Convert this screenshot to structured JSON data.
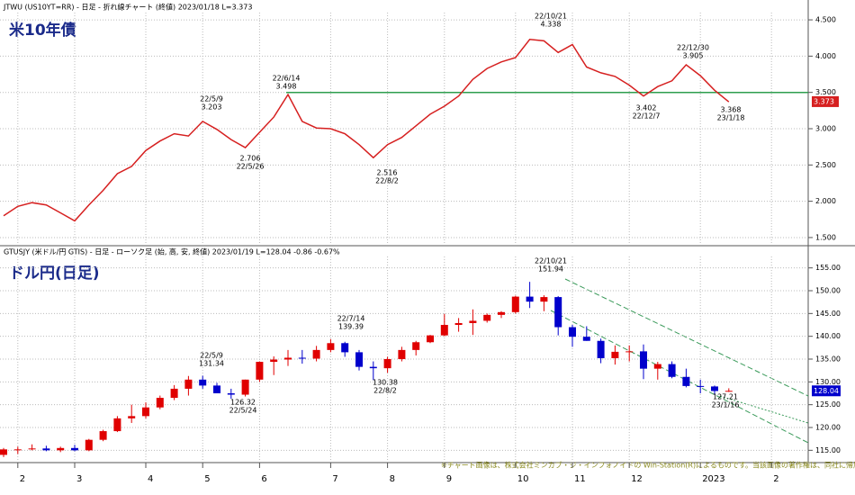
{
  "chart_data": [
    {
      "type": "line",
      "title": "米10年債",
      "header": "JTWU (US10YT=RR) - 日足 - 折れ線チャート (終値)  2023/01/18 L=3.373",
      "color": "#d62020",
      "values": [
        1.8,
        1.93,
        1.98,
        1.95,
        1.84,
        1.73,
        1.95,
        2.15,
        2.38,
        2.48,
        2.7,
        2.83,
        2.93,
        2.9,
        3.1,
        2.99,
        2.85,
        2.74,
        2.95,
        3.16,
        3.47,
        3.1,
        3.01,
        3.0,
        2.93,
        2.78,
        2.6,
        2.78,
        2.88,
        3.04,
        3.2,
        3.31,
        3.45,
        3.68,
        3.83,
        3.92,
        3.98,
        4.23,
        4.21,
        4.05,
        4.16,
        3.85,
        3.77,
        3.72,
        3.6,
        3.45,
        3.58,
        3.66,
        3.88,
        3.73,
        3.53,
        3.37,
        null,
        null,
        null
      ],
      "ylim": [
        1.4,
        4.6
      ],
      "yticks": [
        {
          "value": 1.5,
          "label": "1.500"
        },
        {
          "value": 2.0,
          "label": "2.000"
        },
        {
          "value": 2.5,
          "label": "2.500"
        },
        {
          "value": 3.0,
          "label": "3.000"
        },
        {
          "value": 3.5,
          "label": "3.500"
        },
        {
          "value": 4.0,
          "label": "4.000"
        },
        {
          "value": 4.5,
          "label": "4.500"
        }
      ],
      "hline": 3.5,
      "hline_color": "#2e9e4e",
      "last": 3.373,
      "annotations": [
        {
          "date": "22/5/9",
          "label": "3.203"
        },
        {
          "date": "22/6/14",
          "label": "3.498"
        },
        {
          "date": "22/5/26",
          "label": "2.706"
        },
        {
          "date": "22/8/2",
          "label": "2.516"
        },
        {
          "date": "22/10/21",
          "label": "4.338"
        },
        {
          "date": "22/12/7",
          "label": "3.402"
        },
        {
          "date": "22/12/30",
          "label": "3.905"
        },
        {
          "date": "23/1/18",
          "label": "3.368"
        }
      ]
    },
    {
      "type": "candlestick",
      "title": "ドル円(日足)",
      "header": "GTUSJY (米ドル/円 GTIS) - 日足 - ローソク足 (始, 高, 安, 終値)  2023/01/19 L=128.04 -0.86 -0.67%",
      "up_color": "#e00000",
      "down_color": "#0000cc",
      "categories": [
        null,
        "2",
        null,
        null,
        null,
        "3",
        null,
        null,
        null,
        null,
        "4",
        null,
        null,
        null,
        "5",
        null,
        null,
        null,
        "6",
        null,
        null,
        null,
        null,
        "7",
        null,
        null,
        null,
        "8",
        null,
        null,
        null,
        "9",
        null,
        null,
        null,
        null,
        "10",
        null,
        null,
        null,
        "11",
        null,
        null,
        null,
        "12",
        null,
        null,
        null,
        null,
        "2023",
        null,
        null,
        null,
        null,
        "2"
      ],
      "open": [
        114.0,
        115.2,
        115.2,
        115.4,
        115.0,
        115.5,
        115.0,
        117.3,
        119.2,
        122.0,
        122.5,
        124.4,
        126.5,
        128.5,
        130.5,
        129.2,
        127.5,
        127.2,
        130.5,
        134.4,
        134.9,
        135.3,
        135.1,
        137.0,
        138.5,
        136.5,
        133.3,
        133.0,
        135.0,
        137.0,
        138.7,
        140.2,
        142.5,
        142.9,
        143.4,
        144.7,
        145.3,
        148.7,
        147.6,
        148.6,
        142.0,
        139.9,
        139.0,
        135.2,
        136.6,
        136.7,
        132.9,
        133.9,
        131.1,
        129.1,
        129.0,
        128.0,
        null,
        null,
        null
      ],
      "high": [
        115.5,
        115.8,
        116.3,
        116.0,
        115.8,
        116.2,
        117.5,
        119.5,
        122.5,
        125.0,
        125.5,
        127.0,
        129.3,
        131.3,
        131.34,
        129.8,
        128.5,
        130.5,
        134.5,
        135.6,
        137.0,
        137.0,
        137.9,
        139.39,
        138.8,
        137.0,
        134.5,
        135.5,
        137.7,
        139.0,
        140.3,
        144.9,
        144.0,
        145.9,
        145.0,
        145.5,
        148.9,
        151.94,
        149.0,
        148.8,
        142.5,
        142.2,
        139.5,
        138.0,
        138.0,
        138.2,
        134.4,
        134.5,
        132.9,
        130.5,
        129.2,
        128.6,
        null,
        null,
        null
      ],
      "low": [
        113.5,
        114.2,
        115.0,
        114.8,
        114.6,
        114.8,
        114.8,
        117.0,
        119.0,
        121.0,
        122.0,
        124.0,
        126.0,
        127.0,
        128.5,
        127.5,
        126.32,
        126.8,
        130.0,
        131.5,
        133.5,
        134.0,
        134.5,
        136.5,
        135.5,
        132.5,
        130.38,
        132.0,
        134.5,
        135.8,
        138.5,
        140.0,
        141.0,
        140.3,
        143.0,
        144.0,
        145.0,
        146.2,
        145.5,
        140.2,
        137.7,
        139.0,
        134.1,
        133.8,
        134.5,
        130.6,
        130.5,
        130.8,
        128.8,
        127.5,
        127.21,
        127.8,
        null,
        null,
        null
      ],
      "close": [
        115.2,
        115.2,
        115.4,
        115.0,
        115.5,
        115.0,
        117.3,
        119.2,
        122.0,
        122.5,
        124.4,
        126.5,
        128.5,
        130.5,
        129.2,
        127.5,
        127.2,
        130.5,
        134.4,
        134.9,
        135.3,
        135.1,
        137.0,
        138.5,
        136.5,
        133.3,
        133.0,
        135.0,
        137.0,
        138.7,
        140.2,
        142.5,
        142.9,
        143.4,
        144.7,
        145.3,
        148.7,
        147.6,
        148.6,
        142.0,
        139.9,
        139.0,
        135.2,
        136.6,
        136.7,
        132.9,
        133.9,
        131.1,
        129.1,
        129.0,
        128.0,
        128.04,
        null,
        null,
        null
      ],
      "ylim": [
        112.5,
        157.5
      ],
      "yticks": [
        {
          "value": 115,
          "label": "115.00"
        },
        {
          "value": 120,
          "label": "120.00"
        },
        {
          "value": 125,
          "label": "125.00"
        },
        {
          "value": 130,
          "label": "130.00"
        },
        {
          "value": 135,
          "label": "135.00"
        },
        {
          "value": 140,
          "label": "140.00"
        },
        {
          "value": 145,
          "label": "145.00"
        },
        {
          "value": 150,
          "label": "150.00"
        },
        {
          "value": 155,
          "label": "155.00"
        }
      ],
      "last": 128.04,
      "annotations": [
        {
          "date": "22/5/9",
          "label": "131.34"
        },
        {
          "date": "22/7/14",
          "label": "139.39"
        },
        {
          "date": "22/5/24",
          "label": "126.32"
        },
        {
          "date": "22/8/2",
          "label": "130.38"
        },
        {
          "date": "22/10/21",
          "label": "151.94"
        },
        {
          "date": "23/1/16",
          "label": "127.21"
        }
      ],
      "footnote": "※チャート画像は、株式会社ミンカブ・ジ・インフォノイドの Win-Station(R)によるものです。当該画像の著作権は、同社に帰属します。"
    }
  ]
}
